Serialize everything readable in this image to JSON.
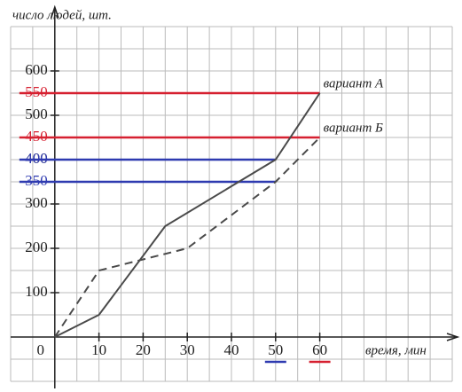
{
  "chart_data": {
    "type": "line",
    "ylabel": "число людей, шт.",
    "xlabel": "время, мин",
    "x": [
      0,
      10,
      25,
      50,
      60
    ],
    "series": [
      {
        "name": "вариант А",
        "color": "#4a4a4a",
        "dashed": false,
        "x": [
          0,
          10,
          25,
          50,
          60
        ],
        "values": [
          0,
          50,
          250,
          400,
          550
        ]
      },
      {
        "name": "вариант Б",
        "color": "#4a4a4a",
        "dashed": true,
        "x": [
          0,
          10,
          30,
          50,
          60
        ],
        "values": [
          0,
          150,
          200,
          350,
          450
        ]
      }
    ],
    "xlim": [
      -10,
      90
    ],
    "ylim": [
      -100,
      700
    ],
    "xticks": [
      0,
      10,
      20,
      30,
      40,
      50,
      60
    ],
    "yticks": [
      100,
      200,
      300,
      400,
      500,
      600
    ],
    "grid": true,
    "grid_step_x": 5,
    "grid_step_y": 50,
    "reference_lines": [
      {
        "y": 350,
        "x_end": 50,
        "color": "#2e3ab0"
      },
      {
        "y": 400,
        "x_end": 50,
        "color": "#2e3ab0"
      },
      {
        "y": 450,
        "x_end": 60,
        "color": "#d62030"
      },
      {
        "y": 550,
        "x_end": 60,
        "color": "#d62030"
      }
    ],
    "xtick_underlines": [
      {
        "x": 50,
        "color": "#2e3ab0"
      },
      {
        "x": 60,
        "color": "#d62030"
      }
    ]
  }
}
